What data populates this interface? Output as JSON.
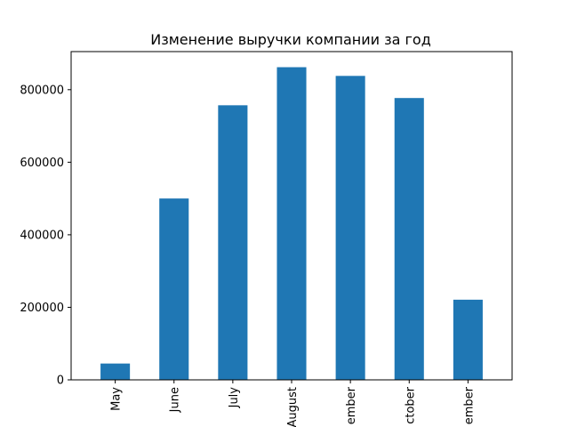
{
  "chart_data": {
    "type": "bar",
    "title": "Изменение выручки компании за год",
    "xlabel": "",
    "ylabel": "",
    "categories": [
      "May",
      "June",
      "July",
      "August",
      "September",
      "October",
      "November"
    ],
    "tick_text": [
      "May",
      "June",
      "July",
      "August",
      "ember",
      "ctober",
      "ember"
    ],
    "values": [
      45000,
      500000,
      757000,
      862000,
      838000,
      777000,
      221000
    ],
    "ylim": [
      0,
      905000
    ],
    "yticks": [
      0,
      200000,
      400000,
      600000,
      800000
    ],
    "grid": false,
    "legend": "none",
    "bar_color": "#1f77b4"
  }
}
